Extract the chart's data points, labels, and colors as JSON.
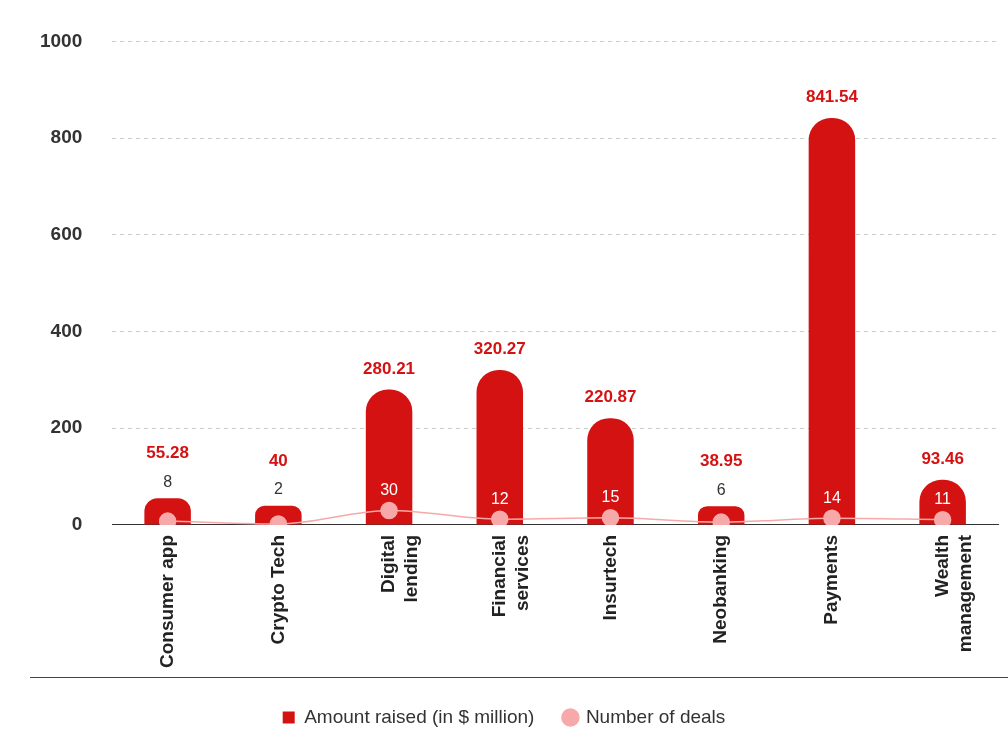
{
  "chart_data": {
    "type": "bar",
    "categories": [
      "Consumer app",
      "Crypto Tech",
      "Digital lending",
      "Financial services",
      "Insurtech",
      "Neobanking",
      "Payments",
      "Wealth management"
    ],
    "series": [
      {
        "name": "Amount raised (in $ million)",
        "color": "#d41212",
        "values": [
          55.28,
          40,
          280.21,
          320.27,
          220.87,
          38.95,
          841.54,
          93.46
        ]
      },
      {
        "name": "Number of deals",
        "type": "line",
        "color": "#f7a9a9",
        "values": [
          8,
          2,
          30,
          12,
          15,
          6,
          14,
          11
        ]
      }
    ],
    "ylim": [
      0,
      1000
    ],
    "yticks": [
      0,
      200,
      400,
      600,
      800,
      1000
    ],
    "grid": "y",
    "legend": "bottom",
    "marker": "circle",
    "data_labels": true
  }
}
